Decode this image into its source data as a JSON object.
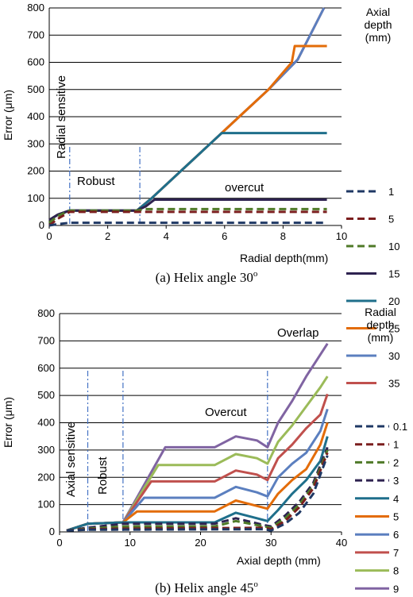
{
  "chart_data": [
    {
      "type": "line",
      "caption": "(a) Helix angle 30",
      "caption_sup": "o",
      "xlabel": "Radial depth(mm)",
      "ylabel": "Error (μm)",
      "xlim": [
        0,
        10
      ],
      "ylim": [
        0,
        800
      ],
      "xticks": [
        "0",
        "2",
        "4",
        "6",
        "8",
        "10"
      ],
      "yticks": [
        "0",
        "100",
        "200",
        "300",
        "400",
        "500",
        "600",
        "700",
        "800"
      ],
      "grid": "horizontal",
      "legend_title": [
        "Axial",
        "depth",
        "(mm)"
      ],
      "legend_position": "right",
      "annotations": [
        {
          "text": "Radial sensitive"
        },
        {
          "text": "Robust"
        },
        {
          "text": "overcut"
        }
      ],
      "vlines": [
        0.7,
        3.1
      ],
      "series": [
        {
          "name": "1",
          "color": "#1f3864",
          "dash": true,
          "points": [
            [
              0,
              0
            ],
            [
              0.3,
              5
            ],
            [
              0.7,
              10
            ],
            [
              9.5,
              10
            ]
          ]
        },
        {
          "name": "5",
          "color": "#7b1e1e",
          "dash": true,
          "points": [
            [
              0,
              0
            ],
            [
              0.3,
              25
            ],
            [
              0.7,
              50
            ],
            [
              9.5,
              50
            ]
          ]
        },
        {
          "name": "10",
          "color": "#4f7a28",
          "dash": true,
          "points": [
            [
              0,
              10
            ],
            [
              0.3,
              35
            ],
            [
              0.7,
              55
            ],
            [
              3,
              55
            ],
            [
              3.3,
              60
            ],
            [
              9.5,
              60
            ]
          ]
        },
        {
          "name": "15",
          "color": "#2e2350",
          "dash": false,
          "points": [
            [
              0,
              20
            ],
            [
              0.3,
              40
            ],
            [
              0.7,
              55
            ],
            [
              3,
              55
            ],
            [
              3.3,
              70
            ],
            [
              3.6,
              95
            ],
            [
              9.5,
              95
            ]
          ]
        },
        {
          "name": "20",
          "color": "#1f6f8b",
          "dash": false,
          "points": [
            [
              0,
              20
            ],
            [
              0.3,
              40
            ],
            [
              0.7,
              55
            ],
            [
              3,
              55
            ],
            [
              3.5,
              100
            ],
            [
              4.5,
              200
            ],
            [
              5.5,
              300
            ],
            [
              5.9,
              340
            ],
            [
              9.5,
              340
            ]
          ]
        },
        {
          "name": "25",
          "color": "#e36c09",
          "dash": false,
          "points": [
            [
              0,
              20
            ],
            [
              0.3,
              40
            ],
            [
              0.7,
              55
            ],
            [
              3,
              55
            ],
            [
              3.5,
              100
            ],
            [
              4.5,
              200
            ],
            [
              5.5,
              300
            ],
            [
              6.5,
              400
            ],
            [
              7.5,
              500
            ],
            [
              8.3,
              600
            ],
            [
              8.4,
              660
            ],
            [
              9.5,
              660
            ]
          ]
        },
        {
          "name": "30",
          "color": "#5b7fbf",
          "dash": false,
          "points": [
            [
              0,
              20
            ],
            [
              0.3,
              40
            ],
            [
              0.7,
              55
            ],
            [
              3,
              55
            ],
            [
              3.5,
              100
            ],
            [
              4.5,
              200
            ],
            [
              5.5,
              300
            ],
            [
              6.5,
              400
            ],
            [
              7.5,
              500
            ],
            [
              8.5,
              610
            ],
            [
              9.4,
              800
            ]
          ]
        },
        {
          "name": "35",
          "color": "#c0504d",
          "dash": false,
          "points": [
            [
              0,
              20
            ],
            [
              0.3,
              40
            ],
            [
              0.7,
              55
            ],
            [
              3,
              55
            ],
            [
              3.5,
              100
            ],
            [
              4.5,
              200
            ],
            [
              5.5,
              300
            ],
            [
              6.5,
              400
            ],
            [
              7.5,
              500
            ],
            [
              8.5,
              610
            ],
            [
              9.4,
              800
            ]
          ]
        }
      ]
    },
    {
      "type": "line",
      "caption": "(b) Helix angle 45",
      "caption_sup": "o",
      "xlabel": "Axial depth (mm)",
      "ylabel": "Error (μm)",
      "xlim": [
        0,
        40
      ],
      "ylim": [
        0,
        800
      ],
      "xticks": [
        "0",
        "10",
        "20",
        "30",
        "40"
      ],
      "yticks": [
        "0",
        "100",
        "200",
        "300",
        "400",
        "500",
        "600",
        "700",
        "800"
      ],
      "grid": "horizontal",
      "legend_title": [
        "Radial",
        "depth",
        "(mm)"
      ],
      "legend_position": "right",
      "annotations": [
        {
          "text": "Axial sensitive"
        },
        {
          "text": "Robust"
        },
        {
          "text": "Overcut"
        },
        {
          "text": "Overlap"
        }
      ],
      "vlines": [
        4,
        9,
        29.5
      ],
      "series": [
        {
          "name": "0.1",
          "color": "#1f3864",
          "dash": true,
          "points": [
            [
              1,
              5
            ],
            [
              4,
              8
            ],
            [
              29,
              10
            ],
            [
              30,
              5
            ],
            [
              32,
              30
            ],
            [
              34,
              70
            ],
            [
              36,
              140
            ],
            [
              38,
              280
            ]
          ]
        },
        {
          "name": "1",
          "color": "#7b1e1e",
          "dash": true,
          "points": [
            [
              1,
              5
            ],
            [
              4,
              10
            ],
            [
              9,
              12
            ],
            [
              29,
              15
            ],
            [
              30,
              10
            ],
            [
              32,
              40
            ],
            [
              34,
              90
            ],
            [
              36,
              160
            ],
            [
              38,
              290
            ]
          ]
        },
        {
          "name": "2",
          "color": "#4f7a28",
          "dash": true,
          "points": [
            [
              1,
              5
            ],
            [
              4,
              12
            ],
            [
              9,
              20
            ],
            [
              22,
              20
            ],
            [
              25,
              40
            ],
            [
              29,
              20
            ],
            [
              30,
              15
            ],
            [
              32,
              50
            ],
            [
              34,
              100
            ],
            [
              36,
              170
            ],
            [
              38,
              300
            ]
          ]
        },
        {
          "name": "3",
          "color": "#2e2350",
          "dash": true,
          "points": [
            [
              1,
              5
            ],
            [
              4,
              15
            ],
            [
              9,
              30
            ],
            [
              22,
              30
            ],
            [
              25,
              50
            ],
            [
              29,
              25
            ],
            [
              30,
              20
            ],
            [
              32,
              60
            ],
            [
              34,
              110
            ],
            [
              36,
              180
            ],
            [
              38,
              310
            ]
          ]
        },
        {
          "name": "4",
          "color": "#1f6f8b",
          "dash": false,
          "points": [
            [
              1,
              5
            ],
            [
              4,
              30
            ],
            [
              9,
              35
            ],
            [
              10,
              35
            ],
            [
              22,
              35
            ],
            [
              25,
              70
            ],
            [
              28,
              50
            ],
            [
              29.5,
              40
            ],
            [
              31,
              80
            ],
            [
              33,
              140
            ],
            [
              35,
              190
            ],
            [
              37,
              260
            ],
            [
              38,
              350
            ]
          ]
        },
        {
          "name": "5",
          "color": "#e36c09",
          "dash": false,
          "points": [
            [
              1,
              5
            ],
            [
              4,
              30
            ],
            [
              9,
              35
            ],
            [
              11,
              75
            ],
            [
              22,
              75
            ],
            [
              25,
              115
            ],
            [
              28,
              95
            ],
            [
              29.5,
              85
            ],
            [
              31,
              140
            ],
            [
              33,
              190
            ],
            [
              35,
              230
            ],
            [
              37,
              320
            ],
            [
              38,
              400
            ]
          ]
        },
        {
          "name": "6",
          "color": "#5b7fbf",
          "dash": false,
          "points": [
            [
              1,
              5
            ],
            [
              4,
              30
            ],
            [
              9,
              35
            ],
            [
              12,
              125
            ],
            [
              22,
              125
            ],
            [
              25,
              165
            ],
            [
              28,
              145
            ],
            [
              29.5,
              130
            ],
            [
              31,
              200
            ],
            [
              33,
              250
            ],
            [
              35,
              290
            ],
            [
              37,
              370
            ],
            [
              38,
              450
            ]
          ]
        },
        {
          "name": "7",
          "color": "#c0504d",
          "dash": false,
          "points": [
            [
              1,
              5
            ],
            [
              4,
              30
            ],
            [
              9,
              35
            ],
            [
              13,
              185
            ],
            [
              22,
              185
            ],
            [
              25,
              225
            ],
            [
              28,
              210
            ],
            [
              29.5,
              190
            ],
            [
              31,
              270
            ],
            [
              33,
              320
            ],
            [
              35,
              380
            ],
            [
              37,
              430
            ],
            [
              38,
              505
            ]
          ]
        },
        {
          "name": "8",
          "color": "#9bbb59",
          "dash": false,
          "points": [
            [
              1,
              5
            ],
            [
              4,
              30
            ],
            [
              9,
              35
            ],
            [
              14,
              245
            ],
            [
              22,
              245
            ],
            [
              25,
              285
            ],
            [
              28,
              270
            ],
            [
              29.5,
              250
            ],
            [
              31,
              330
            ],
            [
              33,
              390
            ],
            [
              35,
              460
            ],
            [
              37,
              530
            ],
            [
              38,
              570
            ]
          ]
        },
        {
          "name": "9",
          "color": "#8064a2",
          "dash": false,
          "points": [
            [
              1,
              5
            ],
            [
              4,
              30
            ],
            [
              9,
              35
            ],
            [
              15,
              310
            ],
            [
              22,
              310
            ],
            [
              25,
              350
            ],
            [
              28,
              335
            ],
            [
              29.5,
              310
            ],
            [
              31,
              400
            ],
            [
              33,
              480
            ],
            [
              35,
              570
            ],
            [
              37,
              650
            ],
            [
              38,
              690
            ]
          ]
        }
      ]
    }
  ]
}
